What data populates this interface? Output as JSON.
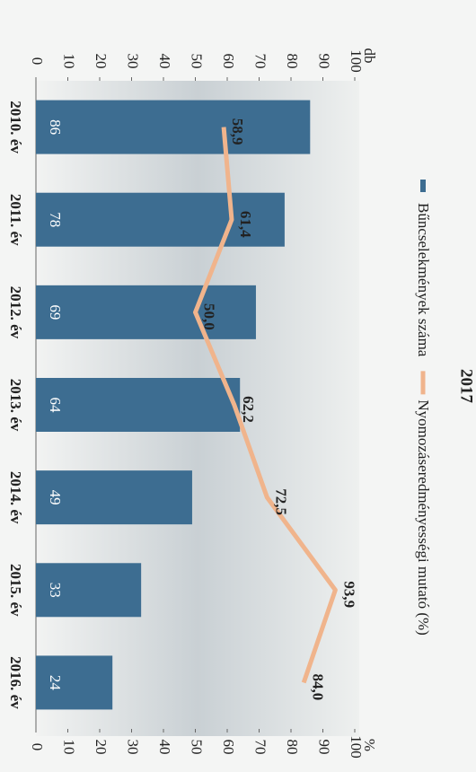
{
  "chart_data": {
    "type": "bar-line",
    "title": "2017",
    "categories": [
      "2010. év",
      "2011. év",
      "2012. év",
      "2013. év",
      "2014. év",
      "2015. év",
      "2016. év"
    ],
    "series": [
      {
        "name": "Bűncselekmények száma",
        "color": "#3d6d91",
        "type": "bar",
        "values": [
          86,
          78,
          69,
          64,
          49,
          33,
          24
        ]
      },
      {
        "name": "Nyomozáseredményességi mutató (%)",
        "color": "#f0b48c",
        "type": "line",
        "axis": "y2",
        "values": [
          58.9,
          61.4,
          50.0,
          62.2,
          72.5,
          93.9,
          84.0
        ],
        "value_labels": [
          "58,9",
          "61,4",
          "50,0",
          "62,2",
          "72,5",
          "93,9",
          "84,0"
        ]
      }
    ],
    "ylabel": "db",
    "y2label": "%",
    "ylim": [
      0,
      100
    ],
    "yticks": [
      0,
      10,
      20,
      30,
      40,
      50,
      60,
      70,
      80,
      90,
      100
    ],
    "y2lim": [
      0,
      100
    ],
    "y2ticks": [
      0,
      10,
      20,
      30,
      40,
      50,
      60,
      70,
      80,
      90,
      100
    ]
  }
}
